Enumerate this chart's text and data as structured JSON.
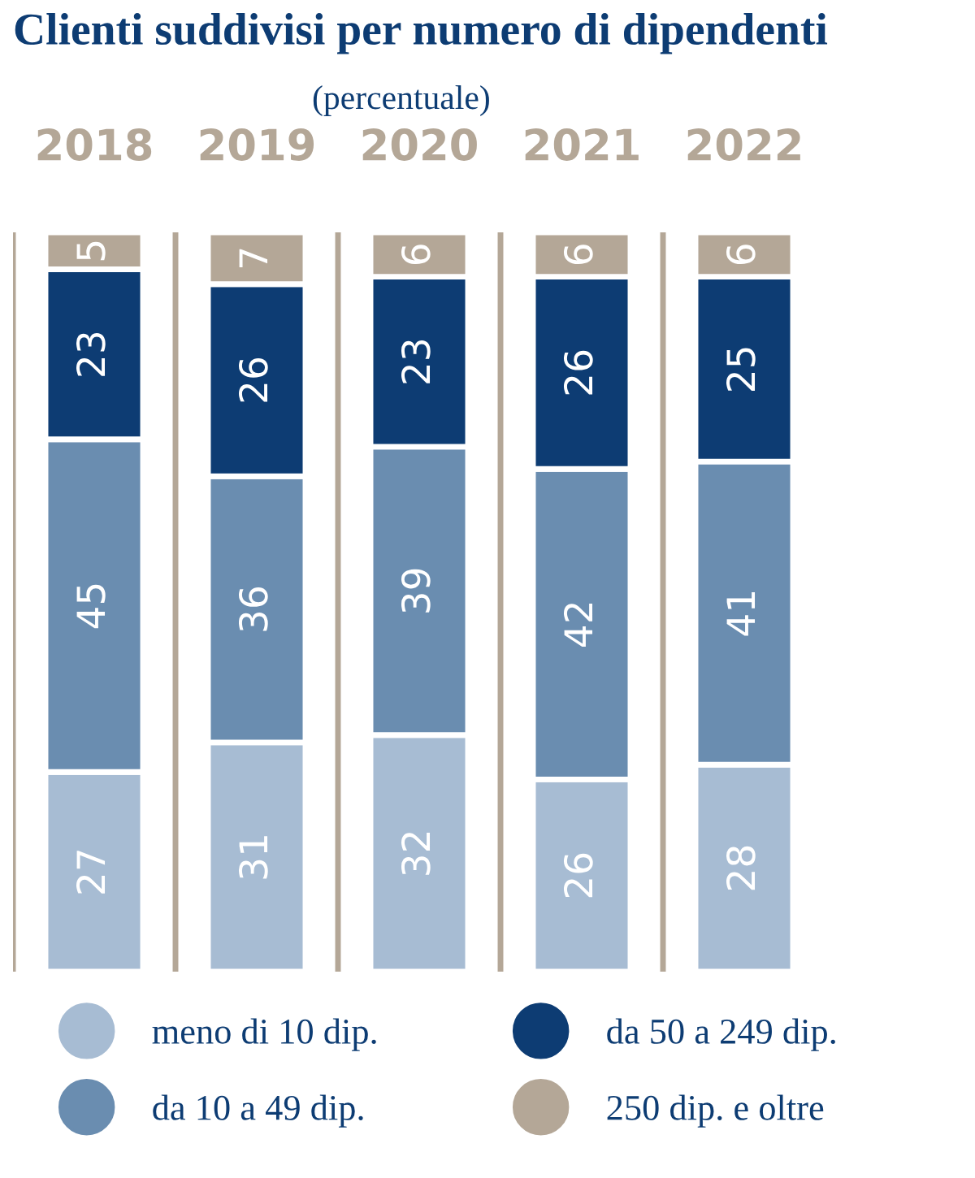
{
  "chart_data": {
    "type": "bar",
    "stacked": true,
    "title": "Clienti suddivisi per numero di dipendenti",
    "subtitle": "(percentuale)",
    "categories": [
      "2018",
      "2019",
      "2020",
      "2021",
      "2022"
    ],
    "series": [
      {
        "name": "meno di 10 dip.",
        "color": "#a7bcd3",
        "values": [
          27,
          31,
          32,
          26,
          28
        ]
      },
      {
        "name": "da 10 a 49 dip.",
        "color": "#6a8db0",
        "values": [
          45,
          36,
          39,
          42,
          41
        ]
      },
      {
        "name": "da 50 a 249 dip.",
        "color": "#0d3c73",
        "values": [
          23,
          26,
          23,
          26,
          25
        ]
      },
      {
        "name": "250 dip. e oltre",
        "color": "#b4a797",
        "values": [
          5,
          7,
          6,
          6,
          6
        ]
      }
    ],
    "data_labels": true,
    "legend": "bottom",
    "grid": "x",
    "tick_labels": "x"
  }
}
